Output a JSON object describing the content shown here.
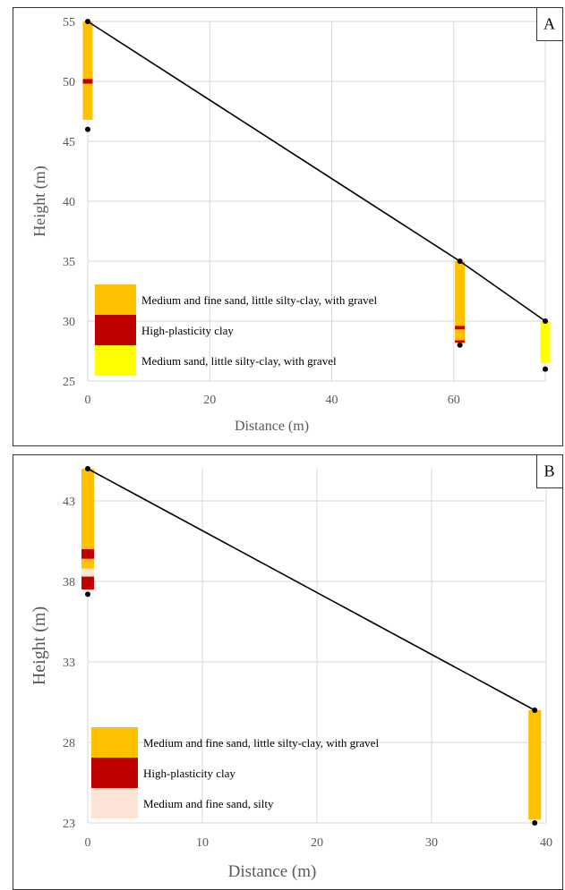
{
  "chart_data": [
    {
      "type": "line",
      "panel_label": "A",
      "xlabel": "Distance (m)",
      "ylabel": "Height (m)",
      "xlim": [
        0,
        75
      ],
      "ylim": [
        25,
        55
      ],
      "xticks": [
        0,
        20,
        40,
        60
      ],
      "yticks": [
        25,
        30,
        35,
        40,
        45,
        50,
        55
      ],
      "grid": true,
      "legend_position": "bottom-left",
      "profile": [
        {
          "x": 0,
          "y": 55
        },
        {
          "x": 61,
          "y": 35
        },
        {
          "x": 75,
          "y": 30
        }
      ],
      "boreholes": [
        {
          "x": 0,
          "top": 55,
          "bottom": 46,
          "layers": [
            {
              "top": 55,
              "bottom": 50.2,
              "material": "sand_gravel"
            },
            {
              "top": 50.2,
              "bottom": 49.8,
              "material": "clay"
            },
            {
              "top": 49.8,
              "bottom": 46.8,
              "material": "sand_gravel"
            }
          ]
        },
        {
          "x": 61,
          "top": 35,
          "bottom": 28,
          "layers": [
            {
              "top": 35,
              "bottom": 29.6,
              "material": "sand_gravel"
            },
            {
              "top": 29.6,
              "bottom": 29.3,
              "material": "clay"
            },
            {
              "top": 29.3,
              "bottom": 28.4,
              "material": "sand_gravel"
            },
            {
              "top": 28.4,
              "bottom": 28.2,
              "material": "clay"
            }
          ]
        },
        {
          "x": 75,
          "top": 30,
          "bottom": 26,
          "layers": [
            {
              "top": 30,
              "bottom": 26.5,
              "material": "sand_medium"
            }
          ]
        }
      ],
      "legend": [
        {
          "material": "sand_gravel",
          "label": "Medium and fine sand, little silty-clay, with gravel",
          "color": "#FFC000"
        },
        {
          "material": "clay",
          "label": "High-plasticity  clay",
          "color": "#C00000"
        },
        {
          "material": "sand_medium",
          "label": "Medium sand, little silty-clay, with gravel",
          "color": "#FFFF00"
        }
      ]
    },
    {
      "type": "line",
      "panel_label": "B",
      "xlabel": "Distance (m)",
      "ylabel": "Height (m)",
      "xlim": [
        0,
        40
      ],
      "ylim": [
        23,
        45
      ],
      "xticks": [
        0,
        10,
        20,
        30,
        40
      ],
      "yticks": [
        23,
        28,
        33,
        38,
        43
      ],
      "grid": true,
      "legend_position": "bottom-left",
      "profile": [
        {
          "x": 0,
          "y": 45
        },
        {
          "x": 39,
          "y": 30
        }
      ],
      "boreholes": [
        {
          "x": 0,
          "top": 45,
          "bottom": 37.2,
          "layers": [
            {
              "top": 45,
              "bottom": 40,
              "material": "sand_gravel"
            },
            {
              "top": 40,
              "bottom": 39.4,
              "material": "clay"
            },
            {
              "top": 39.4,
              "bottom": 38.8,
              "material": "sand_gravel"
            },
            {
              "top": 38.8,
              "bottom": 38.3,
              "material": "sand_silty"
            },
            {
              "top": 38.3,
              "bottom": 37.5,
              "material": "clay"
            }
          ]
        },
        {
          "x": 39,
          "top": 30,
          "bottom": 23,
          "layers": [
            {
              "top": 30,
              "bottom": 23.2,
              "material": "sand_gravel"
            }
          ]
        }
      ],
      "legend": [
        {
          "material": "sand_gravel",
          "label": "Medium and fine sand, little silty-clay, with gravel",
          "color": "#FFC000"
        },
        {
          "material": "clay",
          "label": "High-plasticity  clay",
          "color": "#C00000"
        },
        {
          "material": "sand_silty",
          "label": "Medium and fine sand, silty",
          "color": "#FCE4D6"
        }
      ]
    }
  ]
}
